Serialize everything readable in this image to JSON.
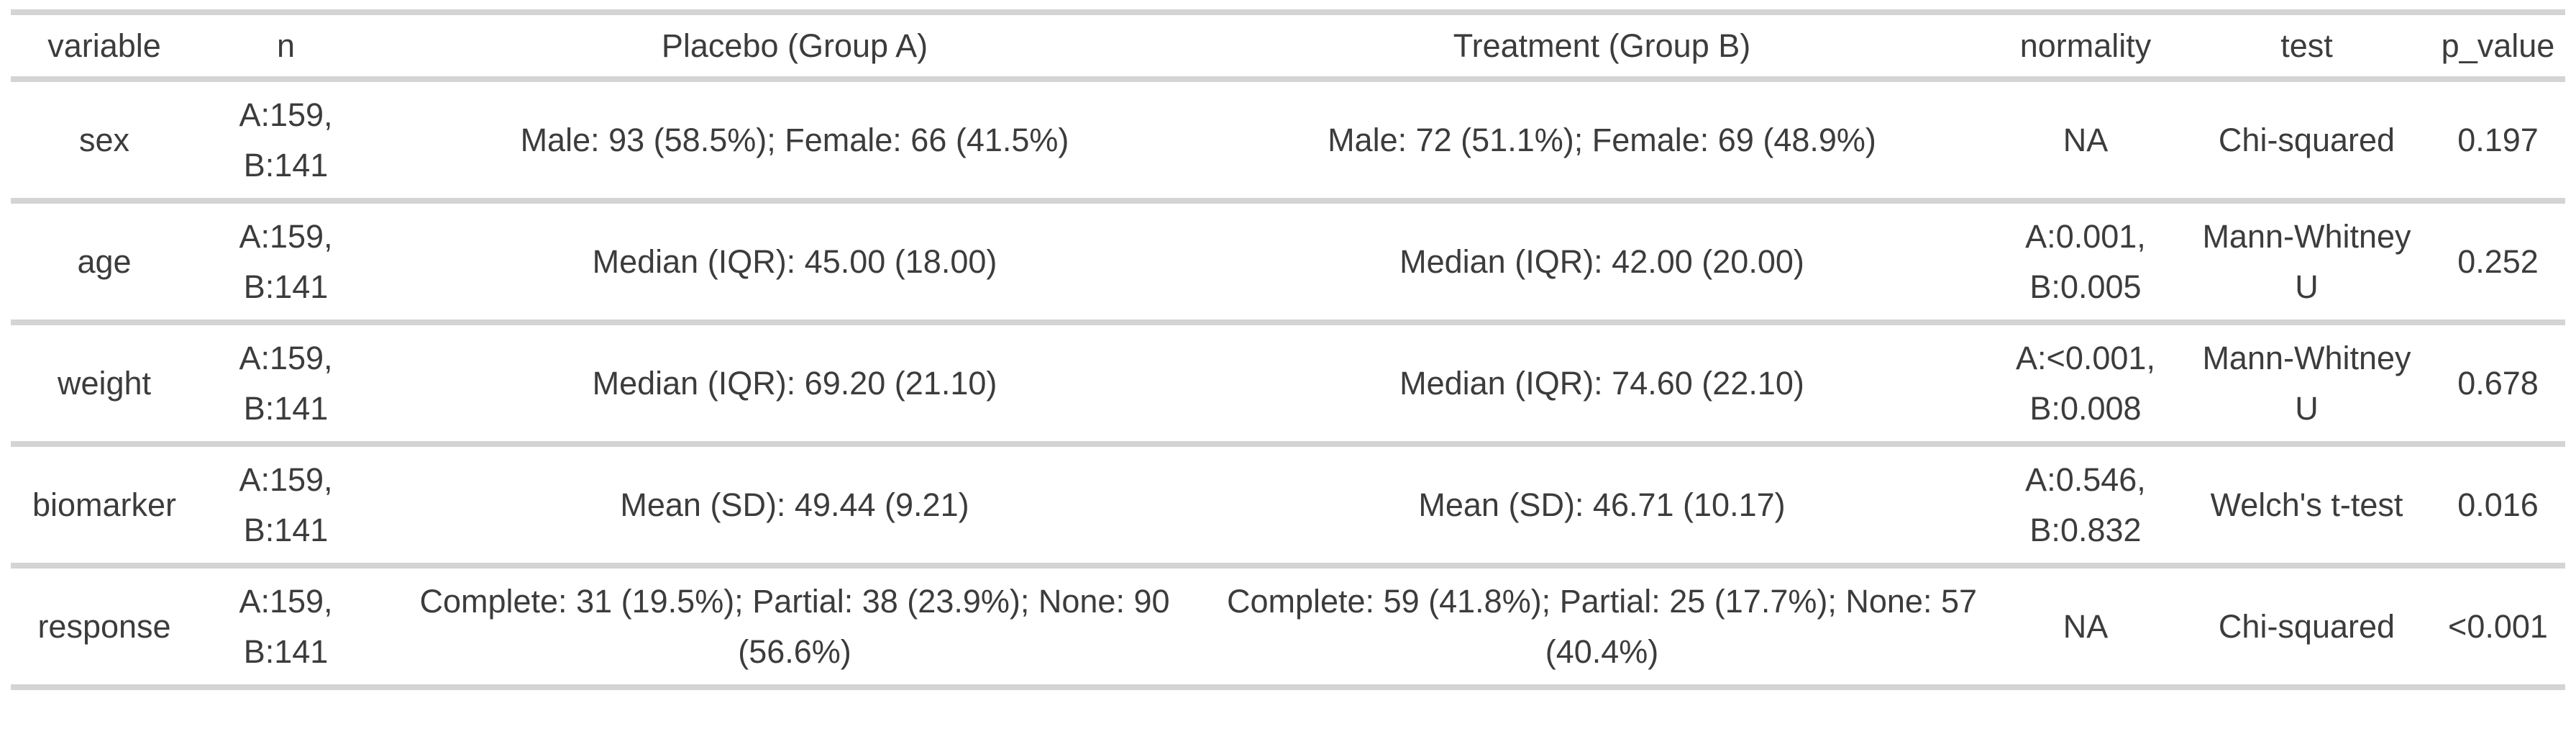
{
  "colors": {
    "text": "#3c3c3c",
    "border": "#d4d4d4",
    "background": "#ffffff"
  },
  "chart_data": {
    "type": "table",
    "columns": [
      "variable",
      "n",
      "Placebo (Group A)",
      "Treatment (Group B)",
      "normality",
      "test",
      "p_value"
    ],
    "rows": [
      {
        "variable": "sex",
        "n": "A:159,\nB:141",
        "placebo": "Male: 93 (58.5%); Female: 66 (41.5%)",
        "treatment": "Male: 72 (51.1%); Female: 69 (48.9%)",
        "normality": "NA",
        "test": "Chi-squared",
        "p_value": "0.197"
      },
      {
        "variable": "age",
        "n": "A:159,\nB:141",
        "placebo": "Median (IQR): 45.00 (18.00)",
        "treatment": "Median (IQR): 42.00 (20.00)",
        "normality": "A:0.001,\nB:0.005",
        "test": "Mann-Whitney\nU",
        "p_value": "0.252"
      },
      {
        "variable": "weight",
        "n": "A:159,\nB:141",
        "placebo": "Median (IQR): 69.20 (21.10)",
        "treatment": "Median (IQR): 74.60 (22.10)",
        "normality": "A:<0.001,\nB:0.008",
        "test": "Mann-Whitney\nU",
        "p_value": "0.678"
      },
      {
        "variable": "biomarker",
        "n": "A:159,\nB:141",
        "placebo": "Mean (SD): 49.44 (9.21)",
        "treatment": "Mean (SD): 46.71 (10.17)",
        "normality": "A:0.546,\nB:0.832",
        "test": "Welch's t-test",
        "p_value": "0.016"
      },
      {
        "variable": "response",
        "n": "A:159,\nB:141",
        "placebo": "Complete: 31 (19.5%); Partial: 38 (23.9%); None: 90\n(56.6%)",
        "treatment": "Complete: 59 (41.8%); Partial: 25 (17.7%); None: 57\n(40.4%)",
        "normality": "NA",
        "test": "Chi-squared",
        "p_value": "<0.001"
      }
    ]
  }
}
